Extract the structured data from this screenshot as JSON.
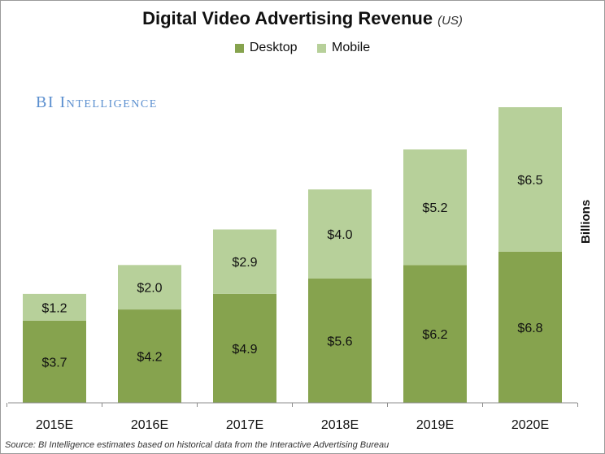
{
  "title": "Digital Video Advertising Revenue",
  "subtitle": "(US)",
  "brand": "BI Intelligence",
  "units_label": "Billions",
  "source": "Source: BI Intelligence estimates based on historical data from the Interactive Advertising Bureau",
  "colors": {
    "desktop": "#86a34e",
    "mobile": "#b7d09a"
  },
  "chart_data": {
    "type": "bar",
    "stacked": true,
    "categories": [
      "2015E",
      "2016E",
      "2017E",
      "2018E",
      "2019E",
      "2020E"
    ],
    "series": [
      {
        "name": "Desktop",
        "values": [
          3.7,
          4.2,
          4.9,
          5.6,
          6.2,
          6.8
        ],
        "labels": [
          "$3.7",
          "$4.2",
          "$4.9",
          "$5.6",
          "$6.2",
          "$6.8"
        ]
      },
      {
        "name": "Mobile",
        "values": [
          1.2,
          2.0,
          2.9,
          4.0,
          5.2,
          6.5
        ],
        "labels": [
          "$1.2",
          "$2.0",
          "$2.9",
          "$4.0",
          "$5.2",
          "$6.5"
        ]
      }
    ],
    "ylabel": "Billions",
    "ylim": [
      0,
      13.3
    ],
    "grid": false,
    "legend": "top-center"
  }
}
